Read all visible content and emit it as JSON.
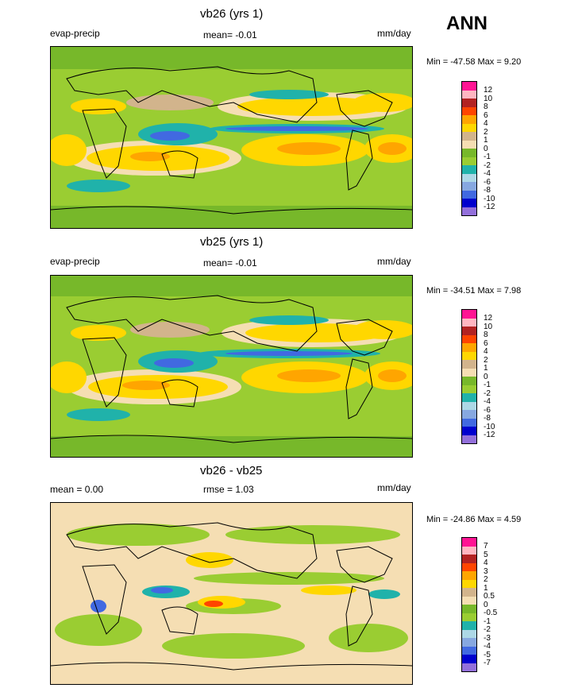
{
  "header": {
    "season": "ANN"
  },
  "colors": {
    "main": [
      "#9370db",
      "#0000cd",
      "#4169e1",
      "#87a8e0",
      "#add8e6",
      "#20b2aa",
      "#9acd32",
      "#77b82a",
      "#f5deb3",
      "#d2b48c",
      "#ffd700",
      "#ffa500",
      "#ff4500",
      "#b22222",
      "#ffb6c1",
      "#ff1493"
    ],
    "diff": [
      "#9370db",
      "#0000cd",
      "#4169e1",
      "#87a8e0",
      "#add8e6",
      "#20b2aa",
      "#9acd32",
      "#77b82a",
      "#f5deb3",
      "#d2b48c",
      "#ffd700",
      "#ffa500",
      "#ff4500",
      "#b22222",
      "#ffb6c1",
      "#ff1493"
    ]
  },
  "chart_data": [
    {
      "type": "heatmap",
      "title": "vb26 (yrs 1)",
      "left_label": "evap-precip",
      "center_label": "mean=  -0.01",
      "right_label": "mm/day",
      "min_max": "Min = -47.58 Max =   9.20",
      "min": -47.58,
      "max": 9.2,
      "mean": -0.01,
      "colorbar_levels": [
        "12",
        "10",
        "8",
        "6",
        "4",
        "2",
        "1",
        "0",
        "-1",
        "-2",
        "-4",
        "-6",
        "-8",
        "-10",
        "-12"
      ]
    },
    {
      "type": "heatmap",
      "title": "vb25 (yrs 1)",
      "left_label": "evap-precip",
      "center_label": "mean=  -0.01",
      "right_label": "mm/day",
      "min_max": "Min = -34.51 Max =   7.98",
      "min": -34.51,
      "max": 7.98,
      "mean": -0.01,
      "colorbar_levels": [
        "12",
        "10",
        "8",
        "6",
        "4",
        "2",
        "1",
        "0",
        "-1",
        "-2",
        "-4",
        "-6",
        "-8",
        "-10",
        "-12"
      ]
    },
    {
      "type": "heatmap",
      "title": "vb26 - vb25",
      "left_label": "mean =   0.00",
      "center_label": "rmse =   1.03",
      "right_label": "mm/day",
      "min_max": "Min = -24.86 Max =   4.59",
      "min": -24.86,
      "max": 4.59,
      "mean": 0.0,
      "rmse": 1.03,
      "colorbar_levels": [
        "7",
        "5",
        "4",
        "3",
        "2",
        "1",
        "0.5",
        "0",
        "-0.5",
        "-1",
        "-2",
        "-3",
        "-4",
        "-5",
        "-7"
      ]
    }
  ]
}
